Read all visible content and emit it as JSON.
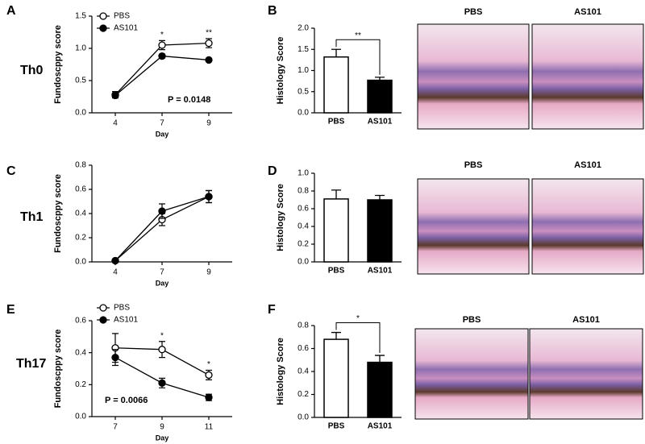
{
  "chart_data": [
    {
      "type": "line",
      "panel": "A",
      "row_label": "Th0",
      "ylabel": "Fundoscppy score",
      "xlabel": "Day",
      "categories": [
        "4",
        "7",
        "9"
      ],
      "ylim": [
        0,
        1.5
      ],
      "yticks": [
        {
          "value": 0,
          "label": "0.0"
        },
        0.5,
        {
          "value": 1,
          "label": "1.0"
        },
        1.5
      ],
      "series": [
        {
          "name": "PBS",
          "color": "#ffffff",
          "values": [
            0.28,
            1.05,
            1.08
          ],
          "errors": [
            0.05,
            0.07,
            0.07
          ]
        },
        {
          "name": "AS101",
          "color": "#000000",
          "values": [
            0.27,
            0.88,
            0.82
          ],
          "errors": [
            0.03,
            0.03,
            0.02
          ]
        }
      ],
      "annotations": [
        {
          "text": "*",
          "x": "7"
        },
        {
          "text": "**",
          "x": "9"
        }
      ],
      "p_value": "P = 0.0148"
    },
    {
      "type": "bar",
      "panel": "B",
      "ylabel": "Histology Score",
      "categories": [
        "PBS",
        "AS101"
      ],
      "values": [
        1.32,
        0.77
      ],
      "errors": [
        0.18,
        0.07
      ],
      "colors": [
        "#ffffff",
        "#000000"
      ],
      "ylim": [
        0,
        2
      ],
      "yticks": [
        {
          "value": 0,
          "label": "0.0"
        },
        0.5,
        {
          "value": 1,
          "label": "1.0"
        },
        1.5,
        {
          "value": 2,
          "label": "2.0"
        }
      ],
      "significance": "**",
      "image_labels": [
        "PBS",
        "AS101"
      ]
    },
    {
      "type": "line",
      "panel": "C",
      "row_label": "Th1",
      "ylabel": "Fundoscppy score",
      "xlabel": "Day",
      "categories": [
        "4",
        "7",
        "9"
      ],
      "ylim": [
        0,
        0.8
      ],
      "yticks": [
        {
          "value": 0,
          "label": "0.0"
        },
        0.2,
        0.4,
        0.6,
        0.8
      ],
      "series": [
        {
          "name": "PBS",
          "color": "#ffffff",
          "values": [
            0.01,
            0.35,
            0.54
          ],
          "errors": [
            0.01,
            0.05,
            0.05
          ]
        },
        {
          "name": "AS101",
          "color": "#000000",
          "values": [
            0.01,
            0.42,
            0.54
          ],
          "errors": [
            0.01,
            0.06,
            0.05
          ]
        }
      ]
    },
    {
      "type": "bar",
      "panel": "D",
      "ylabel": "Histology Score",
      "categories": [
        "PBS",
        "AS101"
      ],
      "values": [
        0.71,
        0.7
      ],
      "errors": [
        0.1,
        0.05
      ],
      "colors": [
        "#ffffff",
        "#000000"
      ],
      "ylim": [
        0,
        1
      ],
      "yticks": [
        {
          "value": 0,
          "label": "0.0"
        },
        0.2,
        0.4,
        0.6,
        0.8,
        {
          "value": 1,
          "label": "1.0"
        }
      ],
      "image_labels": [
        "PBS",
        "AS101"
      ]
    },
    {
      "type": "line",
      "panel": "E",
      "row_label": "Th17",
      "ylabel": "Fundoscppy score",
      "xlabel": "Day",
      "categories": [
        "7",
        "9",
        "11"
      ],
      "ylim": [
        0,
        0.6
      ],
      "yticks": [
        {
          "value": 0,
          "label": "0.0"
        },
        0.2,
        0.4,
        0.6
      ],
      "series": [
        {
          "name": "PBS",
          "color": "#ffffff",
          "values": [
            0.43,
            0.42,
            0.26
          ],
          "errors": [
            0.09,
            0.05,
            0.03
          ]
        },
        {
          "name": "AS101",
          "color": "#000000",
          "values": [
            0.37,
            0.21,
            0.12
          ],
          "errors": [
            0.05,
            0.03,
            0.02
          ]
        }
      ],
      "annotations": [
        {
          "text": "*",
          "x": "9"
        },
        {
          "text": "*",
          "x": "11"
        }
      ],
      "p_value": "P = 0.0066"
    },
    {
      "type": "bar",
      "panel": "F",
      "ylabel": "Histology Score",
      "categories": [
        "PBS",
        "AS101"
      ],
      "values": [
        0.68,
        0.48
      ],
      "errors": [
        0.06,
        0.06
      ],
      "colors": [
        "#ffffff",
        "#000000"
      ],
      "ylim": [
        0,
        0.8
      ],
      "yticks": [
        {
          "value": 0,
          "label": "0.0"
        },
        0.2,
        0.4,
        0.6,
        0.8
      ],
      "significance": "*",
      "image_labels": [
        "PBS",
        "AS101"
      ]
    }
  ]
}
